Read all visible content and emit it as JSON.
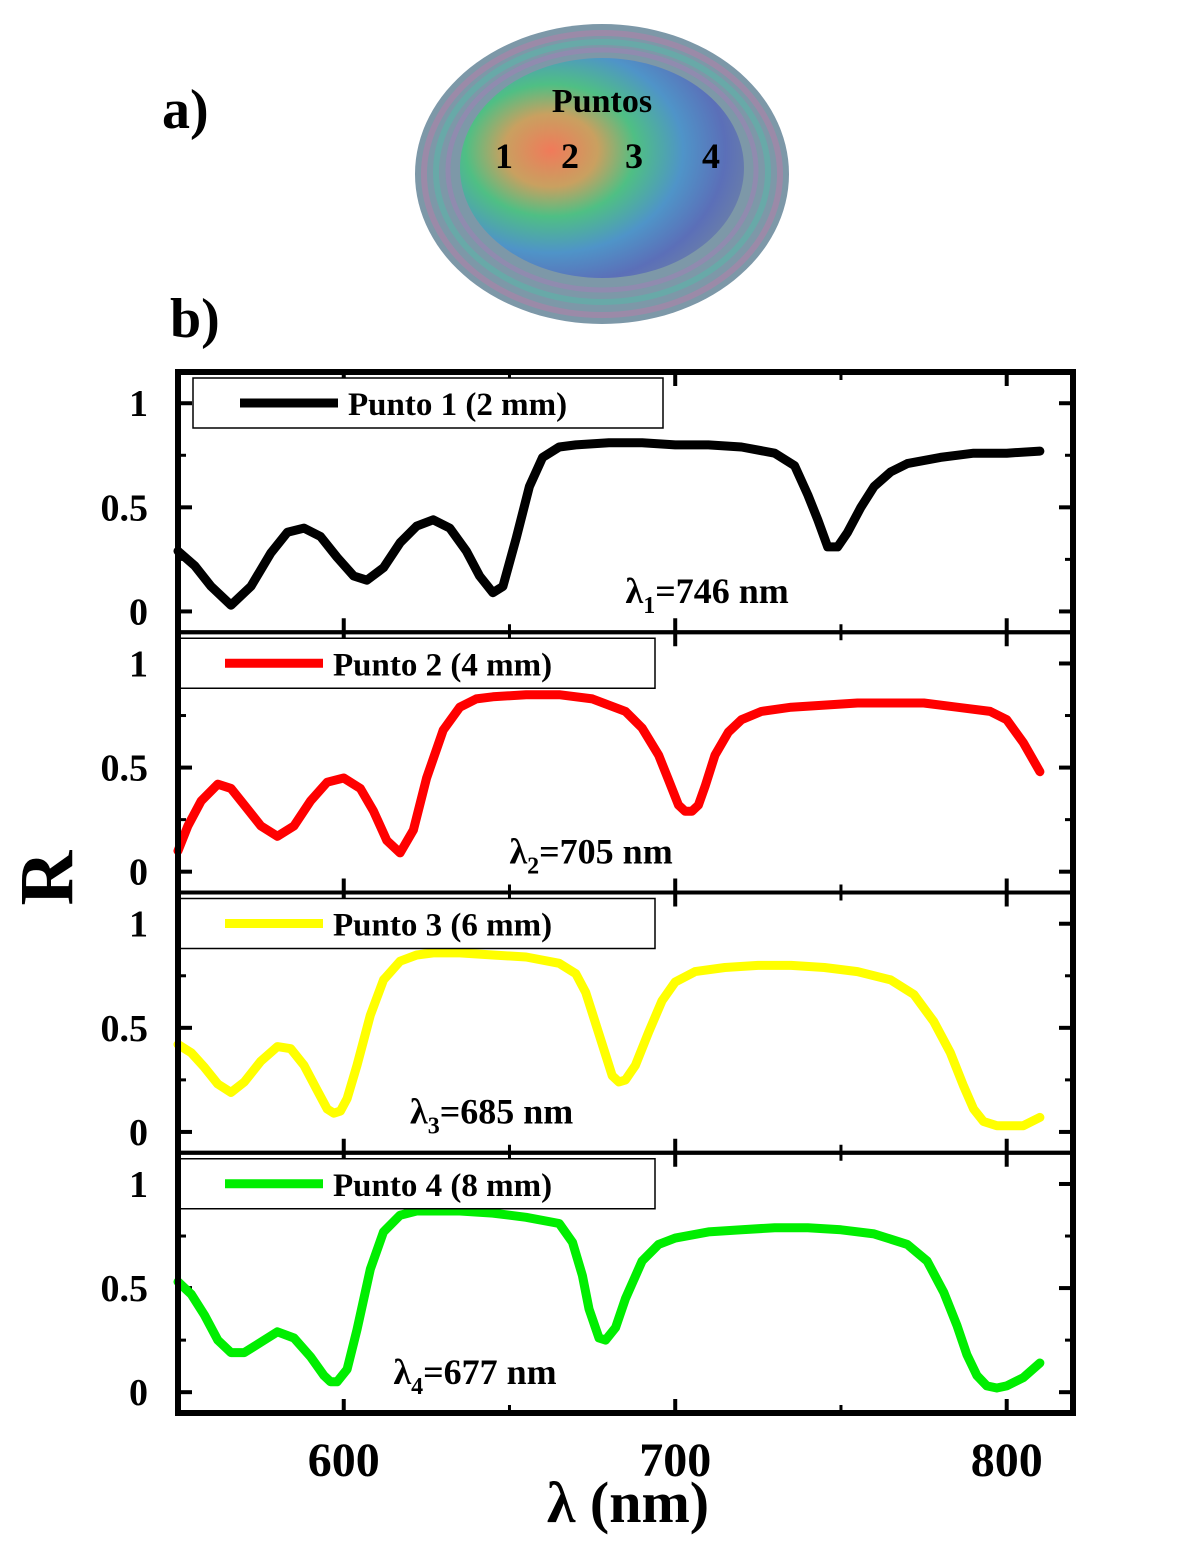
{
  "panel_a": {
    "label": "a)",
    "title": "Puntos",
    "points": [
      "1",
      "2",
      "3",
      "4"
    ]
  },
  "panel_b": {
    "label": "b)"
  },
  "colors": {
    "punto1": "#000000",
    "punto2": "#ff0000",
    "punto3": "#ffff00",
    "punto4": "#00ee00",
    "frame": "#000000"
  },
  "chart_data": {
    "type": "line",
    "xlabel": "λ (nm)",
    "ylabel": "R",
    "xlim": [
      550,
      820
    ],
    "xticks": [
      600,
      700,
      800
    ],
    "xtick_labels": [
      "600",
      "700",
      "800"
    ],
    "ylim": [
      -0.1,
      1.15
    ],
    "yticks": [
      0,
      0.5,
      1
    ],
    "ytick_labels": [
      "0",
      "0.5",
      "1"
    ],
    "series": [
      {
        "name": "Punto 1 (2 mm)",
        "annotation_sym": "λ",
        "annotation_sub": "1",
        "annotation_rest": "=746 nm",
        "annotation_x": 685,
        "annotation_y": 0.04,
        "x": [
          550,
          555,
          560,
          566,
          572,
          578,
          583,
          588,
          593,
          598,
          603,
          607,
          612,
          617,
          622,
          627,
          632,
          637,
          641,
          645,
          648,
          652,
          656,
          660,
          665,
          670,
          680,
          690,
          700,
          710,
          720,
          730,
          736,
          740,
          743,
          746,
          749,
          752,
          756,
          760,
          765,
          770,
          780,
          790,
          800,
          810
        ],
        "y": [
          0.29,
          0.22,
          0.12,
          0.03,
          0.12,
          0.28,
          0.38,
          0.4,
          0.36,
          0.26,
          0.17,
          0.15,
          0.21,
          0.33,
          0.41,
          0.44,
          0.4,
          0.29,
          0.17,
          0.09,
          0.12,
          0.35,
          0.6,
          0.74,
          0.79,
          0.8,
          0.81,
          0.81,
          0.8,
          0.8,
          0.79,
          0.76,
          0.7,
          0.56,
          0.44,
          0.31,
          0.31,
          0.38,
          0.5,
          0.6,
          0.67,
          0.71,
          0.74,
          0.76,
          0.76,
          0.77
        ]
      },
      {
        "name": "Punto 2 (4 mm)",
        "annotation_sym": "λ",
        "annotation_sub": "2",
        "annotation_rest": "=705 nm",
        "annotation_x": 650,
        "annotation_y": 0.04,
        "x": [
          550,
          553,
          557,
          562,
          566,
          570,
          575,
          580,
          585,
          590,
          595,
          600,
          605,
          609,
          613,
          617,
          621,
          625,
          630,
          635,
          640,
          645,
          655,
          665,
          675,
          685,
          690,
          695,
          698,
          701,
          703,
          705,
          707,
          709,
          712,
          716,
          720,
          726,
          735,
          745,
          755,
          765,
          775,
          785,
          795,
          800,
          805,
          810
        ],
        "y": [
          0.1,
          0.22,
          0.34,
          0.42,
          0.4,
          0.32,
          0.22,
          0.17,
          0.22,
          0.34,
          0.43,
          0.45,
          0.4,
          0.29,
          0.15,
          0.09,
          0.2,
          0.45,
          0.68,
          0.79,
          0.83,
          0.84,
          0.85,
          0.85,
          0.83,
          0.77,
          0.69,
          0.56,
          0.44,
          0.32,
          0.29,
          0.29,
          0.32,
          0.41,
          0.56,
          0.67,
          0.73,
          0.77,
          0.79,
          0.8,
          0.81,
          0.81,
          0.81,
          0.79,
          0.77,
          0.73,
          0.62,
          0.48
        ]
      },
      {
        "name": "Punto 3 (6 mm)",
        "annotation_sym": "λ",
        "annotation_sub": "3",
        "annotation_rest": "=685 nm",
        "annotation_x": 620,
        "annotation_y": 0.04,
        "x": [
          550,
          554,
          558,
          562,
          566,
          570,
          575,
          580,
          584,
          588,
          592,
          595,
          597,
          599,
          601,
          604,
          608,
          612,
          617,
          622,
          627,
          635,
          645,
          655,
          665,
          670,
          673,
          676,
          679,
          681,
          683,
          685,
          688,
          692,
          696,
          700,
          706,
          715,
          725,
          735,
          745,
          755,
          765,
          772,
          778,
          783,
          787,
          790,
          793,
          797,
          800,
          805,
          810
        ],
        "y": [
          0.42,
          0.38,
          0.31,
          0.23,
          0.19,
          0.24,
          0.34,
          0.41,
          0.4,
          0.32,
          0.2,
          0.11,
          0.09,
          0.1,
          0.16,
          0.32,
          0.56,
          0.73,
          0.82,
          0.85,
          0.86,
          0.86,
          0.85,
          0.84,
          0.81,
          0.76,
          0.67,
          0.52,
          0.37,
          0.27,
          0.24,
          0.25,
          0.32,
          0.48,
          0.63,
          0.72,
          0.77,
          0.79,
          0.8,
          0.8,
          0.79,
          0.77,
          0.73,
          0.66,
          0.53,
          0.38,
          0.22,
          0.11,
          0.05,
          0.03,
          0.03,
          0.03,
          0.07
        ]
      },
      {
        "name": "Punto 4 (8 mm)",
        "annotation_sym": "λ",
        "annotation_sub": "4",
        "annotation_rest": "=677 nm",
        "annotation_x": 615,
        "annotation_y": 0.04,
        "x": [
          550,
          554,
          558,
          562,
          566,
          570,
          575,
          580,
          585,
          590,
          594,
          596,
          598,
          601,
          604,
          608,
          612,
          617,
          622,
          627,
          635,
          645,
          655,
          665,
          669,
          672,
          674,
          677,
          679,
          682,
          685,
          690,
          695,
          700,
          710,
          720,
          730,
          740,
          750,
          760,
          770,
          776,
          781,
          785,
          788,
          791,
          794,
          797,
          800,
          805,
          810
        ],
        "y": [
          0.53,
          0.47,
          0.37,
          0.25,
          0.19,
          0.19,
          0.24,
          0.29,
          0.26,
          0.17,
          0.08,
          0.05,
          0.05,
          0.11,
          0.3,
          0.59,
          0.77,
          0.85,
          0.87,
          0.87,
          0.87,
          0.86,
          0.84,
          0.81,
          0.72,
          0.56,
          0.4,
          0.26,
          0.25,
          0.31,
          0.45,
          0.63,
          0.71,
          0.74,
          0.77,
          0.78,
          0.79,
          0.79,
          0.78,
          0.76,
          0.71,
          0.63,
          0.48,
          0.32,
          0.18,
          0.08,
          0.03,
          0.02,
          0.03,
          0.07,
          0.14
        ]
      }
    ]
  }
}
